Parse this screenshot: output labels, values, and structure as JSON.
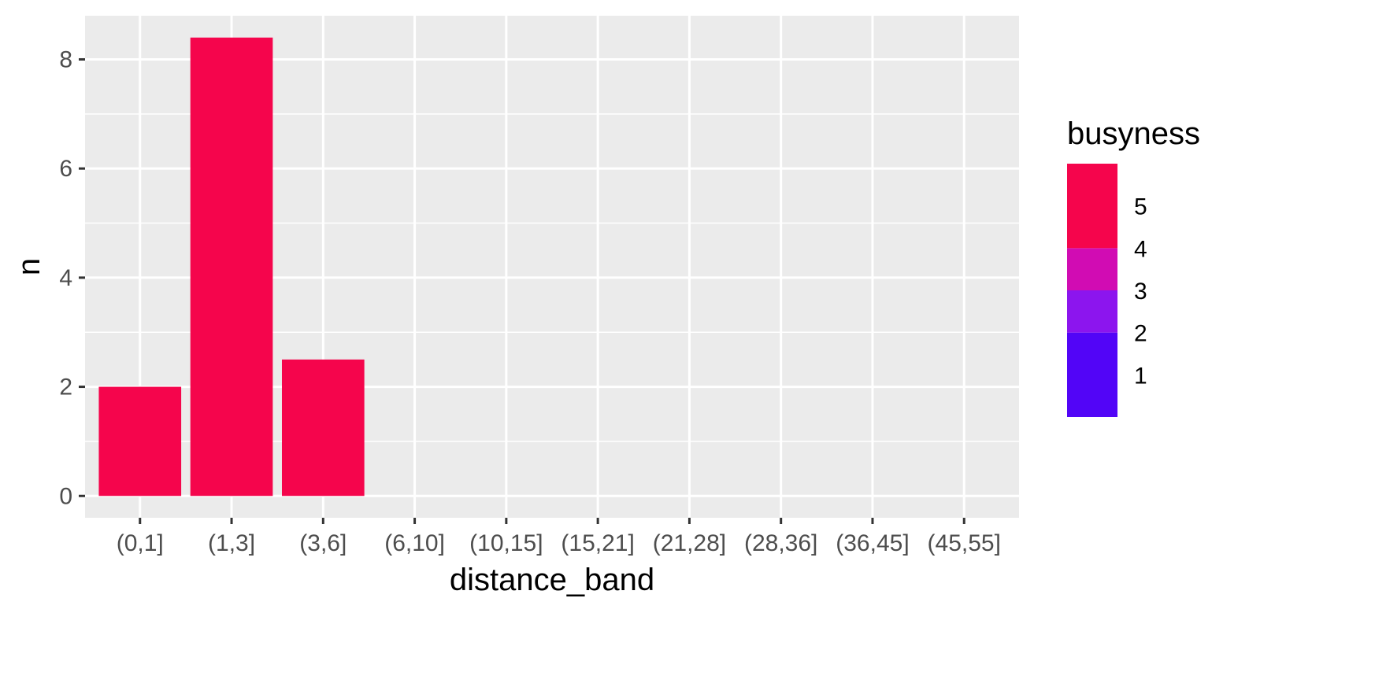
{
  "chart_data": {
    "type": "bar",
    "categories": [
      "(0,1]",
      "(1,3]",
      "(3,6]",
      "(6,10]",
      "(10,15]",
      "(15,21]",
      "(21,28]",
      "(28,36]",
      "(36,45]",
      "(45,55]"
    ],
    "values": [
      2,
      8.4,
      2.5,
      0,
      0,
      0,
      0,
      0,
      0,
      0
    ],
    "xlabel": "distance_band",
    "ylabel": "n",
    "ylim": [
      -0.4,
      8.8
    ],
    "yticks": [
      0,
      2,
      4,
      6,
      8
    ],
    "bar_color": "#f5054c",
    "panel_background": "#ebebeb",
    "grid": true,
    "legend": {
      "title": "busyness",
      "placement": "right",
      "labels": [
        "5",
        "4",
        "3",
        "2",
        "1"
      ],
      "colorbar": {
        "min": 0,
        "max": 6,
        "stops": [
          {
            "from": 0,
            "to": 2,
            "color": "#5205f7"
          },
          {
            "from": 2,
            "to": 3,
            "color": "#8c15ee"
          },
          {
            "from": 3,
            "to": 4,
            "color": "#d10cb3"
          },
          {
            "from": 4,
            "to": 6,
            "color": "#f5054c"
          }
        ]
      }
    }
  }
}
